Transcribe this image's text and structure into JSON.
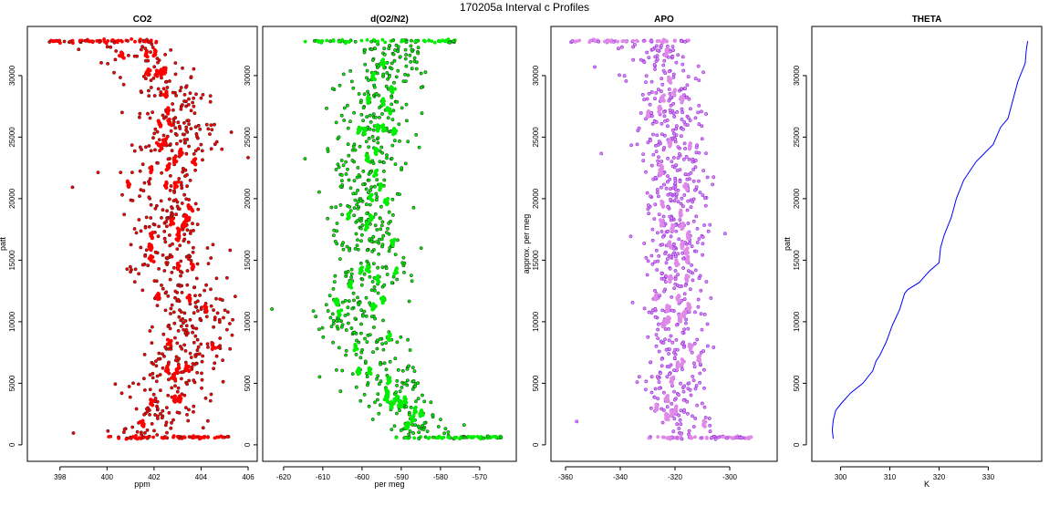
{
  "figure_title": "170205a   Interval c Profiles",
  "chart_data": [
    {
      "type": "scatter",
      "title": "CO2",
      "xlabel": "ppm",
      "ylabel": "patt",
      "xlim": [
        397,
        406
      ],
      "ylim": [
        -600,
        33400
      ],
      "xticks": [
        398,
        400,
        402,
        404,
        406
      ],
      "yticks": [
        0,
        5000,
        10000,
        15000,
        20000,
        25000,
        30000
      ],
      "color": "#ff0000",
      "edge_color": "#5a1a1a",
      "profile": [
        [
          401.2,
          600
        ],
        [
          402.4,
          2000
        ],
        [
          403.0,
          4500
        ],
        [
          403.2,
          7000
        ],
        [
          403.5,
          9000
        ],
        [
          403.5,
          11000
        ],
        [
          403.0,
          13000
        ],
        [
          402.6,
          15000
        ],
        [
          402.8,
          17000
        ],
        [
          402.6,
          19000
        ],
        [
          402.8,
          21000
        ],
        [
          402.8,
          23000
        ],
        [
          402.8,
          25000
        ],
        [
          402.6,
          27000
        ],
        [
          402.7,
          28500
        ],
        [
          402.4,
          30000
        ],
        [
          401.6,
          31500
        ],
        [
          401.0,
          32800
        ]
      ],
      "spread": 0.9,
      "n_points": 620,
      "bottom_band": {
        "y": 600,
        "range": [
          400.0,
          405.3
        ]
      },
      "top_band": {
        "y": 32800,
        "range": [
          397.3,
          402.2
        ]
      }
    },
    {
      "type": "scatter",
      "title": "d(O2/N2)",
      "xlabel": "per meg",
      "ylabel": "",
      "xlim": [
        -623,
        -563
      ],
      "ylim": [
        -600,
        33400
      ],
      "xticks": [
        -620,
        -610,
        -600,
        -590,
        -580,
        -570
      ],
      "xtick_labels": [
        "-620",
        "-610",
        "-600",
        "-590",
        "-580",
        "-570"
      ],
      "yticks": [
        0,
        5000,
        10000,
        15000,
        20000,
        25000,
        30000
      ],
      "color": "#00ee00",
      "edge_color": "#1a4a1a",
      "profile": [
        [
          -584.0,
          600
        ],
        [
          -586.0,
          2000
        ],
        [
          -594.0,
          4500
        ],
        [
          -596.0,
          7000
        ],
        [
          -601.0,
          9000
        ],
        [
          -603.0,
          11000
        ],
        [
          -598.0,
          13000
        ],
        [
          -596.0,
          15000
        ],
        [
          -598.0,
          17000
        ],
        [
          -599.0,
          19000
        ],
        [
          -599.0,
          21000
        ],
        [
          -598.0,
          23000
        ],
        [
          -596.0,
          25000
        ],
        [
          -597.0,
          27000
        ],
        [
          -596.0,
          28500
        ],
        [
          -595.0,
          30000
        ],
        [
          -593.0,
          31500
        ],
        [
          -593.0,
          32800
        ]
      ],
      "spread": 5.0,
      "n_points": 620,
      "bottom_band": {
        "y": 600,
        "range": [
          -592.0,
          -564.5
        ]
      },
      "top_band": {
        "y": 32800,
        "range": [
          -616.0,
          -576.0
        ]
      }
    },
    {
      "type": "scatter",
      "title": "APO",
      "xlabel": "",
      "ylabel": "approx. per meg",
      "xlim": [
        -362,
        -286
      ],
      "ylim": [
        -600,
        33400
      ],
      "xticks": [
        -360,
        -340,
        -320,
        -300
      ],
      "yticks": [
        0,
        5000,
        10000,
        15000,
        20000,
        25000,
        30000
      ],
      "color": "#e08ae8",
      "edge_color": "#8a2be2",
      "profile": [
        [
          -315.0,
          600
        ],
        [
          -318.0,
          2000
        ],
        [
          -322.0,
          4500
        ],
        [
          -319.0,
          7000
        ],
        [
          -320.0,
          9000
        ],
        [
          -321.0,
          11000
        ],
        [
          -320.0,
          13000
        ],
        [
          -319.0,
          15000
        ],
        [
          -320.0,
          17000
        ],
        [
          -321.0,
          19000
        ],
        [
          -320.0,
          21000
        ],
        [
          -320.0,
          23000
        ],
        [
          -321.0,
          25000
        ],
        [
          -322.0,
          27000
        ],
        [
          -322.0,
          28500
        ],
        [
          -323.0,
          30000
        ],
        [
          -324.0,
          31500
        ],
        [
          -330.0,
          32800
        ]
      ],
      "spread": 6.0,
      "n_points": 620,
      "bottom_band": {
        "y": 600,
        "range": [
          -330.0,
          -292.0
        ]
      },
      "top_band": {
        "y": 32800,
        "range": [
          -358.0,
          -315.0
        ]
      }
    },
    {
      "type": "line",
      "title": "THETA",
      "xlabel": "K",
      "ylabel": "patt",
      "xlim": [
        296,
        339
      ],
      "ylim": [
        -600,
        33400
      ],
      "xticks": [
        300,
        310,
        320,
        330
      ],
      "yticks": [
        0,
        5000,
        10000,
        15000,
        20000,
        25000,
        30000
      ],
      "color": "#0000ff",
      "x": [
        298.5,
        298.3,
        298.5,
        299.0,
        300.2,
        302.0,
        304.5,
        306.5,
        307.2,
        308.0,
        309.3,
        310.5,
        312.0,
        313.0,
        313.6,
        316.0,
        318.0,
        320.0,
        320.3,
        321.0,
        322.5,
        323.5,
        325.0,
        327.5,
        330.0,
        331.0,
        332.5,
        334.0,
        335.0,
        336.0,
        337.5,
        337.7,
        338.0
      ],
      "y": [
        500,
        1200,
        2000,
        2800,
        3400,
        4200,
        5000,
        6000,
        6800,
        7300,
        8400,
        9700,
        11000,
        12300,
        12600,
        13200,
        14100,
        14800,
        16000,
        17000,
        18500,
        20000,
        21500,
        23000,
        24000,
        24400,
        25800,
        26500,
        28000,
        29500,
        31000,
        32000,
        32800
      ]
    }
  ]
}
